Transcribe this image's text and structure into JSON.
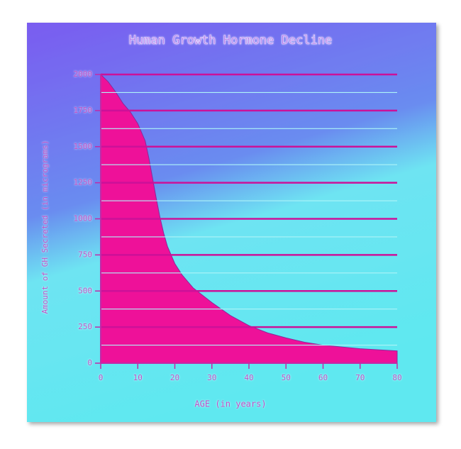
{
  "chart_data": {
    "type": "area",
    "title": "Human Growth Hormone Decline",
    "x_label": "AGE (in years)",
    "y_label": "Amount of GH Secreted (in micrograms)",
    "x": [
      0,
      2,
      4,
      6,
      8,
      10,
      12,
      13,
      14,
      15,
      16,
      17,
      18,
      20,
      22,
      25,
      30,
      35,
      40,
      45,
      50,
      55,
      60,
      70,
      80
    ],
    "values": [
      2000,
      1950,
      1880,
      1800,
      1740,
      1660,
      1540,
      1420,
      1280,
      1140,
      1010,
      900,
      810,
      690,
      610,
      520,
      420,
      330,
      260,
      210,
      175,
      145,
      125,
      100,
      85
    ],
    "color": "#ee1199",
    "xlim": [
      0,
      80
    ],
    "xticks": [
      0,
      10,
      20,
      30,
      40,
      50,
      60,
      70,
      80
    ],
    "ylim": [
      0,
      2000
    ],
    "yticks": [
      0,
      250,
      500,
      750,
      1000,
      1250,
      1500,
      1750,
      2000
    ],
    "grid": true,
    "grid_color": "#cc1199",
    "minor_grid": true,
    "minor_grid_color": "#aef4f8"
  }
}
